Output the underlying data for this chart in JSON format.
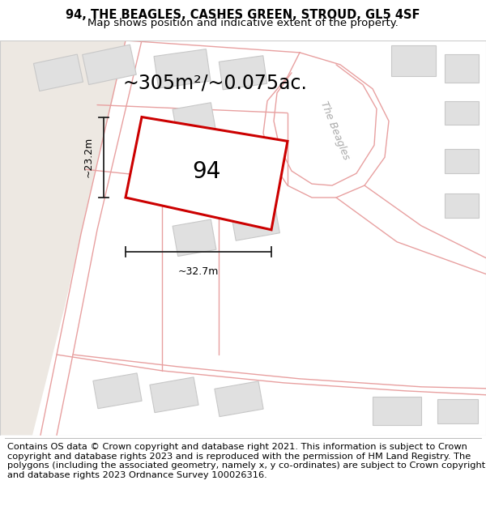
{
  "title_line1": "94, THE BEAGLES, CASHES GREEN, STROUD, GL5 4SF",
  "title_line2": "Map shows position and indicative extent of the property.",
  "footer_text": "Contains OS data © Crown copyright and database right 2021. This information is subject to Crown copyright and database rights 2023 and is reproduced with the permission of HM Land Registry. The polygons (including the associated geometry, namely x, y co-ordinates) are subject to Crown copyright and database rights 2023 Ordnance Survey 100026316.",
  "area_label": "~305m²/~0.075ac.",
  "property_number": "94",
  "width_label": "~32.7m",
  "height_label": "~23.2m",
  "street_label": "The Beagles",
  "map_bg": "#f7f7f5",
  "left_tan_color": "#ede8e2",
  "road_line_color": "#e8a0a0",
  "building_fill": "#e0e0e0",
  "building_edge": "#c8c8c8",
  "highlight_color": "#cc0000",
  "dim_line_color": "#222222",
  "street_label_color": "#aaaaaa",
  "title_fontsize": 10.5,
  "subtitle_fontsize": 9.5,
  "footer_fontsize": 8.2,
  "area_fontsize": 17,
  "number_fontsize": 20,
  "dim_fontsize": 9,
  "street_fontsize": 9
}
